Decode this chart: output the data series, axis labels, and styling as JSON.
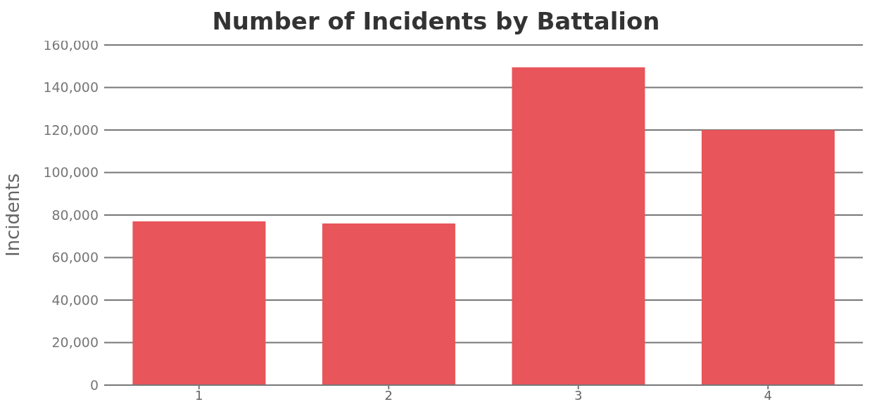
{
  "chart_data": {
    "type": "bar",
    "title": "Number of Incidents by Battalion",
    "ylabel": "Incidents",
    "categories": [
      "1",
      "2",
      "3",
      "4"
    ],
    "values": [
      77000,
      76000,
      149500,
      120000
    ],
    "color": "#e8555a",
    "ylim": [
      0,
      160000
    ],
    "yticks": [
      0,
      {
        "value": 20000,
        "label": "20,000"
      },
      {
        "value": 40000,
        "label": "40,000"
      },
      {
        "value": 60000,
        "label": "60,000"
      },
      {
        "value": 80000,
        "label": "80,000"
      },
      {
        "value": 100000,
        "label": "100,000"
      },
      {
        "value": 120000,
        "label": "120,000"
      },
      {
        "value": 140000,
        "label": "140,000"
      },
      {
        "value": 160000,
        "label": "160,000"
      }
    ],
    "grid": "y"
  }
}
